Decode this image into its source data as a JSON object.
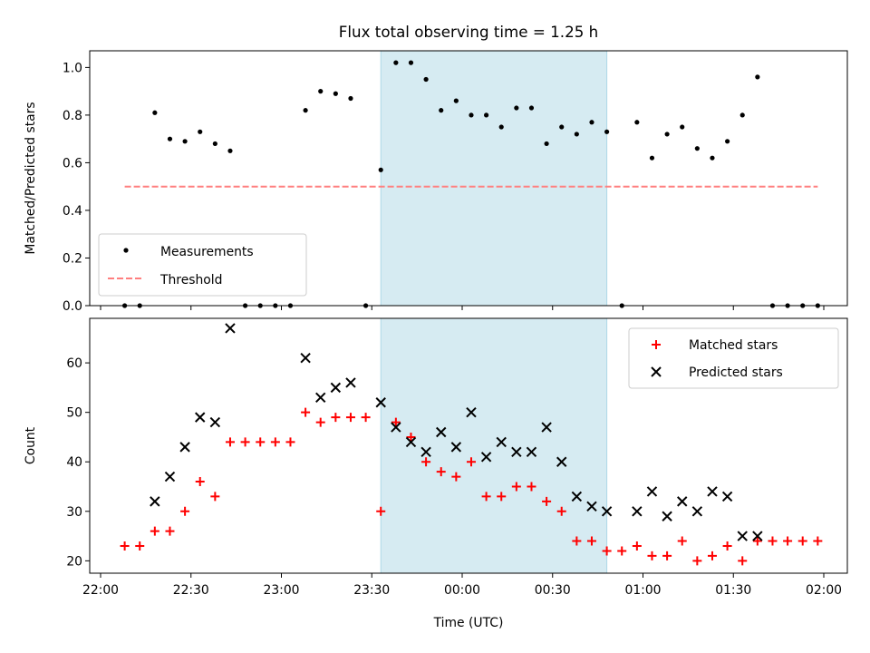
{
  "chart_data": [
    {
      "type": "scatter",
      "title": "Flux total observing time = 1.25 h",
      "xlabel": "",
      "ylabel": "Matched/Predicted stars",
      "ylim": [
        0,
        1.07
      ],
      "yticks": [
        "0.0",
        "0.2",
        "0.4",
        "0.6",
        "0.8",
        "1.0"
      ],
      "ytick_values": [
        0,
        0.2,
        0.4,
        0.6,
        0.8,
        1.0
      ],
      "legend_position": "lower-left",
      "highlight_span": {
        "from": "23:33",
        "to": "00:48"
      },
      "series": [
        {
          "name": "Measurements",
          "marker": "dot",
          "color": "#000000",
          "points": [
            [
              "22:08",
              0.0
            ],
            [
              "22:13",
              0.0
            ],
            [
              "22:18",
              0.81
            ],
            [
              "22:23",
              0.7
            ],
            [
              "22:28",
              0.69
            ],
            [
              "22:33",
              0.73
            ],
            [
              "22:38",
              0.68
            ],
            [
              "22:43",
              0.65
            ],
            [
              "22:48",
              0.0
            ],
            [
              "22:53",
              0.0
            ],
            [
              "22:58",
              0.0
            ],
            [
              "23:03",
              0.0
            ],
            [
              "23:08",
              0.82
            ],
            [
              "23:13",
              0.9
            ],
            [
              "23:18",
              0.89
            ],
            [
              "23:23",
              0.87
            ],
            [
              "23:28",
              0.0
            ],
            [
              "23:33",
              0.57
            ],
            [
              "23:38",
              1.02
            ],
            [
              "23:43",
              1.02
            ],
            [
              "23:48",
              0.95
            ],
            [
              "23:53",
              0.82
            ],
            [
              "23:58",
              0.86
            ],
            [
              "00:03",
              0.8
            ],
            [
              "00:08",
              0.8
            ],
            [
              "00:13",
              0.75
            ],
            [
              "00:18",
              0.83
            ],
            [
              "00:23",
              0.83
            ],
            [
              "00:28",
              0.68
            ],
            [
              "00:33",
              0.75
            ],
            [
              "00:38",
              0.72
            ],
            [
              "00:43",
              0.77
            ],
            [
              "00:48",
              0.73
            ],
            [
              "00:53",
              0.0
            ],
            [
              "00:58",
              0.77
            ],
            [
              "01:03",
              0.62
            ],
            [
              "01:08",
              0.72
            ],
            [
              "01:13",
              0.75
            ],
            [
              "01:18",
              0.66
            ],
            [
              "01:23",
              0.62
            ],
            [
              "01:28",
              0.69
            ],
            [
              "01:33",
              0.8
            ],
            [
              "01:38",
              0.96
            ],
            [
              "01:43",
              0.0
            ],
            [
              "01:48",
              0.0
            ],
            [
              "01:53",
              0.0
            ],
            [
              "01:58",
              0.0
            ]
          ]
        },
        {
          "name": "Threshold",
          "marker": "dashed-line",
          "color": "#ff7f7f",
          "points": [
            [
              "22:08",
              0.5
            ],
            [
              "01:58",
              0.5
            ]
          ]
        }
      ]
    },
    {
      "type": "scatter",
      "title": "",
      "xlabel": "Time (UTC)",
      "ylabel": "Count",
      "ylim": [
        17.5,
        69
      ],
      "yticks": [
        "20",
        "30",
        "40",
        "50",
        "60"
      ],
      "ytick_values": [
        20,
        30,
        40,
        50,
        60
      ],
      "xticks": [
        "22:00",
        "22:30",
        "23:00",
        "23:30",
        "00:00",
        "00:30",
        "01:00",
        "01:30",
        "02:00"
      ],
      "legend_position": "top-right",
      "highlight_span": {
        "from": "23:33",
        "to": "00:48"
      },
      "series": [
        {
          "name": "Matched stars",
          "marker": "plus",
          "color": "#ff0000",
          "points": [
            [
              "22:08",
              23
            ],
            [
              "22:13",
              23
            ],
            [
              "22:18",
              26
            ],
            [
              "22:23",
              26
            ],
            [
              "22:28",
              30
            ],
            [
              "22:33",
              36
            ],
            [
              "22:38",
              33
            ],
            [
              "22:43",
              44
            ],
            [
              "22:48",
              44
            ],
            [
              "22:53",
              44
            ],
            [
              "22:58",
              44
            ],
            [
              "23:03",
              44
            ],
            [
              "23:08",
              50
            ],
            [
              "23:13",
              48
            ],
            [
              "23:18",
              49
            ],
            [
              "23:23",
              49
            ],
            [
              "23:28",
              49
            ],
            [
              "23:33",
              30
            ],
            [
              "23:38",
              48
            ],
            [
              "23:43",
              45
            ],
            [
              "23:48",
              40
            ],
            [
              "23:53",
              38
            ],
            [
              "23:58",
              37
            ],
            [
              "00:03",
              40
            ],
            [
              "00:08",
              33
            ],
            [
              "00:13",
              33
            ],
            [
              "00:18",
              35
            ],
            [
              "00:23",
              35
            ],
            [
              "00:28",
              32
            ],
            [
              "00:33",
              30
            ],
            [
              "00:38",
              24
            ],
            [
              "00:43",
              24
            ],
            [
              "00:48",
              22
            ],
            [
              "00:53",
              22
            ],
            [
              "00:58",
              23
            ],
            [
              "01:03",
              21
            ],
            [
              "01:08",
              21
            ],
            [
              "01:13",
              24
            ],
            [
              "01:18",
              20
            ],
            [
              "01:23",
              21
            ],
            [
              "01:28",
              23
            ],
            [
              "01:33",
              20
            ],
            [
              "01:38",
              24
            ],
            [
              "01:43",
              24
            ],
            [
              "01:48",
              24
            ],
            [
              "01:53",
              24
            ],
            [
              "01:58",
              24
            ]
          ]
        },
        {
          "name": "Predicted stars",
          "marker": "x",
          "color": "#000000",
          "points": [
            [
              "22:18",
              32
            ],
            [
              "22:23",
              37
            ],
            [
              "22:28",
              43
            ],
            [
              "22:33",
              49
            ],
            [
              "22:38",
              48
            ],
            [
              "22:43",
              67
            ],
            [
              "23:08",
              61
            ],
            [
              "23:13",
              53
            ],
            [
              "23:18",
              55
            ],
            [
              "23:23",
              56
            ],
            [
              "23:33",
              52
            ],
            [
              "23:38",
              47
            ],
            [
              "23:43",
              44
            ],
            [
              "23:48",
              42
            ],
            [
              "23:53",
              46
            ],
            [
              "23:58",
              43
            ],
            [
              "00:03",
              50
            ],
            [
              "00:08",
              41
            ],
            [
              "00:13",
              44
            ],
            [
              "00:18",
              42
            ],
            [
              "00:23",
              42
            ],
            [
              "00:28",
              47
            ],
            [
              "00:33",
              40
            ],
            [
              "00:38",
              33
            ],
            [
              "00:43",
              31
            ],
            [
              "00:48",
              30
            ],
            [
              "00:58",
              30
            ],
            [
              "01:03",
              34
            ],
            [
              "01:08",
              29
            ],
            [
              "01:13",
              32
            ],
            [
              "01:18",
              30
            ],
            [
              "01:23",
              34
            ],
            [
              "01:28",
              33
            ],
            [
              "01:33",
              25
            ],
            [
              "01:38",
              25
            ]
          ]
        }
      ]
    }
  ]
}
